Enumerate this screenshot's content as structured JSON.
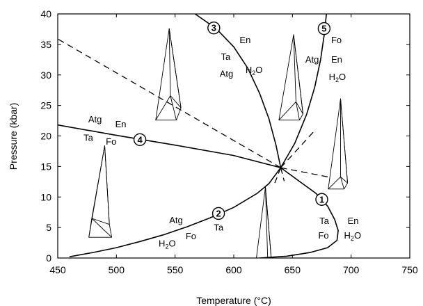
{
  "chart_data": {
    "type": "phase-diagram",
    "xlabel": "Temperature (°C)",
    "ylabel": "Pressure (kbar)",
    "xlim": [
      450,
      750
    ],
    "ylim": [
      0,
      40
    ],
    "xticks": [
      450,
      500,
      550,
      600,
      650,
      700,
      750
    ],
    "yticks": [
      0,
      5,
      10,
      15,
      20,
      25,
      30,
      35,
      40
    ],
    "invariant_point": {
      "x": 640,
      "y": 14.8
    },
    "reactions": [
      {
        "number": "1",
        "style": "solid",
        "points": [
          [
            640,
            14.8
          ],
          [
            655,
            12.7
          ],
          [
            670,
            10.6
          ],
          [
            680,
            8.5
          ],
          [
            686,
            6.3
          ],
          [
            689,
            4.5
          ],
          [
            688,
            2.9
          ],
          [
            680,
            1.7
          ],
          [
            665,
            0.9
          ],
          [
            645,
            0.3
          ],
          [
            622,
            0
          ]
        ],
        "labels": [
          {
            "text": "Ta",
            "x": 673,
            "y": 5.6
          },
          {
            "text": "En",
            "x": 697,
            "y": 5.6
          },
          {
            "text": "Fo",
            "x": 672,
            "y": 3.2
          },
          {
            "text": "H",
            "sub": "2",
            "tail": "O",
            "x": 694,
            "y": 3.2
          }
        ],
        "marker": {
          "x": 675,
          "y": 9.6
        }
      },
      {
        "number": "2",
        "style": "solid",
        "points": [
          [
            460,
            0.2
          ],
          [
            480,
            0.9
          ],
          [
            500,
            1.7
          ],
          [
            520,
            2.7
          ],
          [
            540,
            3.8
          ],
          [
            560,
            5.1
          ],
          [
            580,
            6.6
          ],
          [
            600,
            8.3
          ],
          [
            620,
            10.6
          ],
          [
            630,
            12.2
          ],
          [
            640,
            14.8
          ]
        ],
        "labels": [
          {
            "text": "Atg",
            "x": 545,
            "y": 5.7
          },
          {
            "text": "Ta",
            "x": 583,
            "y": 4.5
          },
          {
            "text": "Fo",
            "x": 559,
            "y": 3.1
          },
          {
            "text": "H",
            "sub": "2",
            "tail": "O",
            "x": 536,
            "y": 1.9
          }
        ],
        "marker": {
          "x": 587,
          "y": 7.3
        }
      },
      {
        "number": "3",
        "style": "solid",
        "points": [
          [
            567,
            40
          ],
          [
            585,
            37.6
          ],
          [
            600,
            34.6
          ],
          [
            612,
            31.1
          ],
          [
            622,
            27.0
          ],
          [
            630,
            22.8
          ],
          [
            636,
            18.5
          ],
          [
            640,
            14.8
          ]
        ],
        "labels": [
          {
            "text": "En",
            "x": 605,
            "y": 35.2
          },
          {
            "text": "Ta",
            "x": 589,
            "y": 32.5
          },
          {
            "text": "H",
            "sub": "2",
            "tail": "O",
            "x": 610,
            "y": 30.3
          },
          {
            "text": "Atg",
            "x": 588,
            "y": 29.7
          }
        ],
        "marker": {
          "x": 583,
          "y": 37.7
        }
      },
      {
        "number": "4",
        "style": "solid",
        "points": [
          [
            450,
            21.8
          ],
          [
            500,
            20.1
          ],
          [
            550,
            18.5
          ],
          [
            600,
            16.8
          ],
          [
            640,
            14.8
          ]
        ],
        "labels": [
          {
            "text": "Atg",
            "x": 476,
            "y": 22.2
          },
          {
            "text": "En",
            "x": 499,
            "y": 21.4
          },
          {
            "text": "Ta",
            "x": 472,
            "y": 19.2
          },
          {
            "text": "Fo",
            "x": 491,
            "y": 18.6
          }
        ],
        "marker": {
          "x": 520,
          "y": 19.4
        }
      },
      {
        "number": "5",
        "style": "solid",
        "points": [
          [
            640,
            14.8
          ],
          [
            652,
            18.8
          ],
          [
            662,
            23.5
          ],
          [
            669,
            28.0
          ],
          [
            674,
            32.5
          ],
          [
            677,
            36.5
          ],
          [
            679,
            40
          ]
        ],
        "labels": [
          {
            "text": "Fo",
            "x": 683,
            "y": 35.2
          },
          {
            "text": "Atg",
            "x": 661,
            "y": 32.0
          },
          {
            "text": "En",
            "x": 683,
            "y": 32.0
          },
          {
            "text": "H",
            "sub": "2",
            "tail": "O",
            "x": 681,
            "y": 29.2
          }
        ],
        "marker": {
          "x": 677,
          "y": 37.6
        }
      }
    ],
    "metastable_extensions": [
      {
        "of": "4",
        "points": [
          [
            640,
            14.8
          ],
          [
            680,
            13.3
          ]
        ]
      },
      {
        "of": "3",
        "points": [
          [
            640,
            14.8
          ],
          [
            643,
            12.6
          ]
        ]
      },
      {
        "of": "5",
        "points": [
          [
            640,
            14.8
          ],
          [
            635,
            12.3
          ]
        ]
      },
      {
        "of": "1",
        "points": [
          [
            640,
            14.8
          ],
          [
            670,
            21.1
          ]
        ]
      },
      {
        "of": "2",
        "points": [
          [
            640,
            14.8
          ],
          [
            450,
            35.9
          ]
        ]
      }
    ],
    "composition_prisms": [
      {
        "name": "prism-lower-left",
        "apex": [
          490,
          18.4
        ],
        "base_top": [
          476.5,
          3.4
        ],
        "base_right": [
          494,
          5.5
        ],
        "base_left": [
          496,
          3.4
        ],
        "tie_anchor": [
          479,
          6.5
        ]
      },
      {
        "name": "prism-upper-left",
        "apex": [
          545,
          37.6
        ],
        "base_top": [
          533.5,
          22.6
        ],
        "base_right": [
          555,
          24.6
        ],
        "base_left": [
          551,
          22.6
        ],
        "tie_anchor": [
          546,
          26.6
        ]
      },
      {
        "name": "prism-center-top",
        "apex": [
          651,
          36.6
        ],
        "base_top": [
          638.5,
          22.6
        ],
        "base_right": [
          659,
          23.6
        ],
        "base_left": [
          656,
          22.6
        ],
        "tie_anchor": [
          653,
          25.6
        ]
      },
      {
        "name": "prism-right",
        "apex": [
          691,
          26.1
        ],
        "base_top": [
          680.5,
          11.3
        ],
        "base_right": [
          697,
          12.3
        ],
        "base_left": [
          694,
          11.3
        ],
        "tie_anchor": [
          691,
          13.3
        ]
      },
      {
        "name": "prism-bottom-center",
        "apex": [
          627,
          11.6
        ],
        "base_top": [
          617,
          -3.4
        ],
        "base_right": [
          633,
          -2.6
        ],
        "base_left": [
          632,
          -3.4
        ],
        "tie_anchor": [
          629,
          -0.6
        ]
      }
    ]
  }
}
